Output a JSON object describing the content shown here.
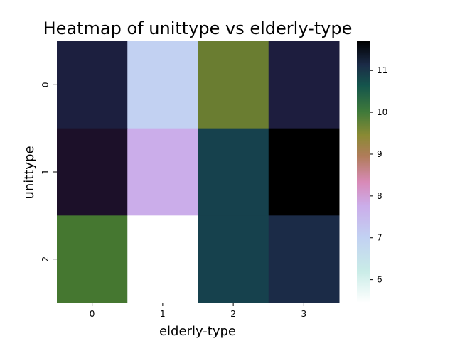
{
  "chart_data": {
    "type": "heatmap",
    "title": "Heatmap of unittype vs elderly-type",
    "xlabel": "elderly-type",
    "ylabel": "unittype",
    "x_categories": [
      "0",
      "1",
      "2",
      "3"
    ],
    "y_categories": [
      "0",
      "1",
      "2"
    ],
    "values": [
      [
        11.0,
        6.9,
        9.1,
        11.0
      ],
      [
        11.2,
        7.4,
        10.5,
        11.7
      ],
      [
        9.5,
        5.45,
        10.5,
        10.8
      ]
    ],
    "colorbar": {
      "colormap": "cubehelix_r",
      "range": [
        5.45,
        11.7
      ],
      "ticks": [
        "6",
        "7",
        "8",
        "9",
        "10",
        "11"
      ]
    },
    "cell_colors": [
      [
        "#1c1f3f",
        "#c2d1f2",
        "#6a7d31",
        "#1d1d3e"
      ],
      [
        "#1c1029",
        "#cbadea",
        "#16414d",
        "#000000"
      ],
      [
        "#457730",
        "#ffffff",
        "#16414d",
        "#1b2b47"
      ]
    ],
    "colorbar_stops": [
      {
        "offset": 0.0,
        "color": "#ffffff"
      },
      {
        "offset": 0.12,
        "color": "#c9ece7"
      },
      {
        "offset": 0.25,
        "color": "#c2d1f2"
      },
      {
        "offset": 0.37,
        "color": "#cbadea"
      },
      {
        "offset": 0.46,
        "color": "#d88ab8"
      },
      {
        "offset": 0.56,
        "color": "#b07c5a"
      },
      {
        "offset": 0.64,
        "color": "#8a8a34"
      },
      {
        "offset": 0.73,
        "color": "#3f7a3a"
      },
      {
        "offset": 0.83,
        "color": "#14554c"
      },
      {
        "offset": 0.91,
        "color": "#1b2b47"
      },
      {
        "offset": 1.0,
        "color": "#000000"
      }
    ]
  }
}
